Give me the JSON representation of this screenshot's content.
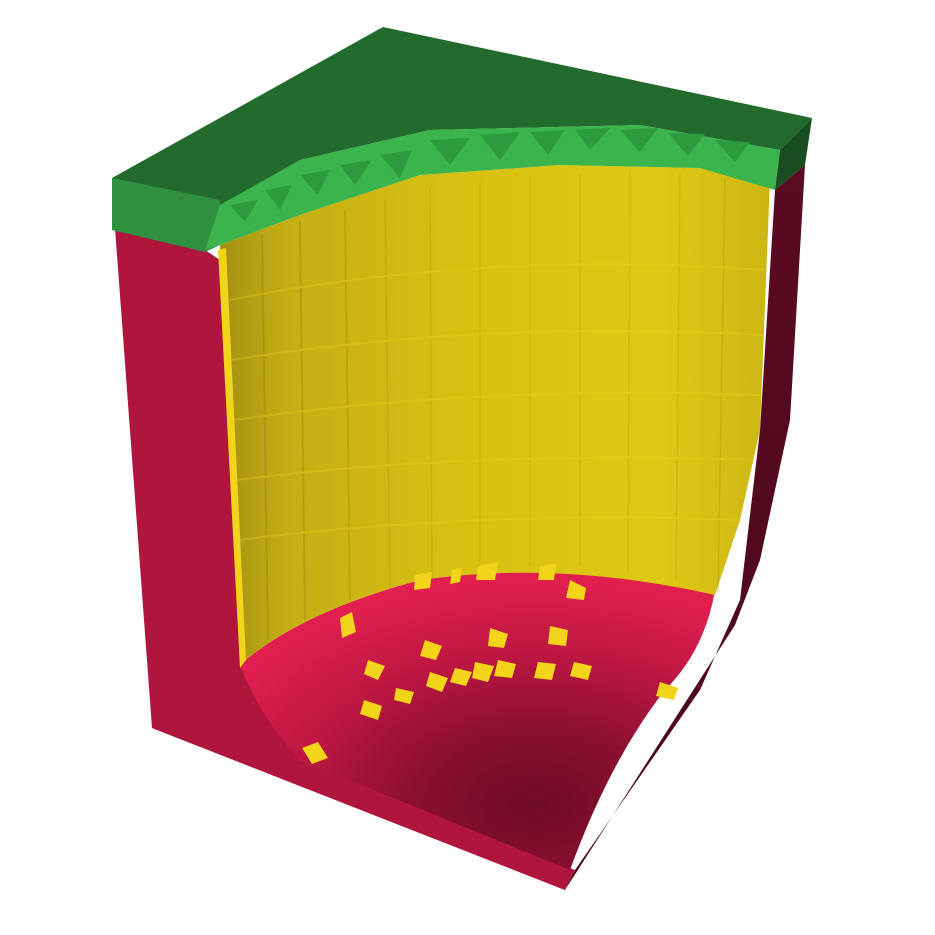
{
  "scene": {
    "description_visible_text": "",
    "colors": {
      "background": "#ffffff",
      "crimson_front": "#b0163d",
      "crimson_side": "#5c0a22",
      "crimson_bowl_light": "#de1d4d",
      "crimson_bowl_mid": "#b5173f",
      "crimson_bowl_dark": "#7a0d2c",
      "green_top": "#236b2d",
      "green_front": "#2f9040",
      "green_inner": "#3cb44d",
      "green_side": "#174d1f",
      "yellow_wall": "#d9c113",
      "yellow_wall_light": "#e6cd17",
      "yellow_wall_dark": "#a39012",
      "yellow_patch": "#f2d41a"
    }
  }
}
